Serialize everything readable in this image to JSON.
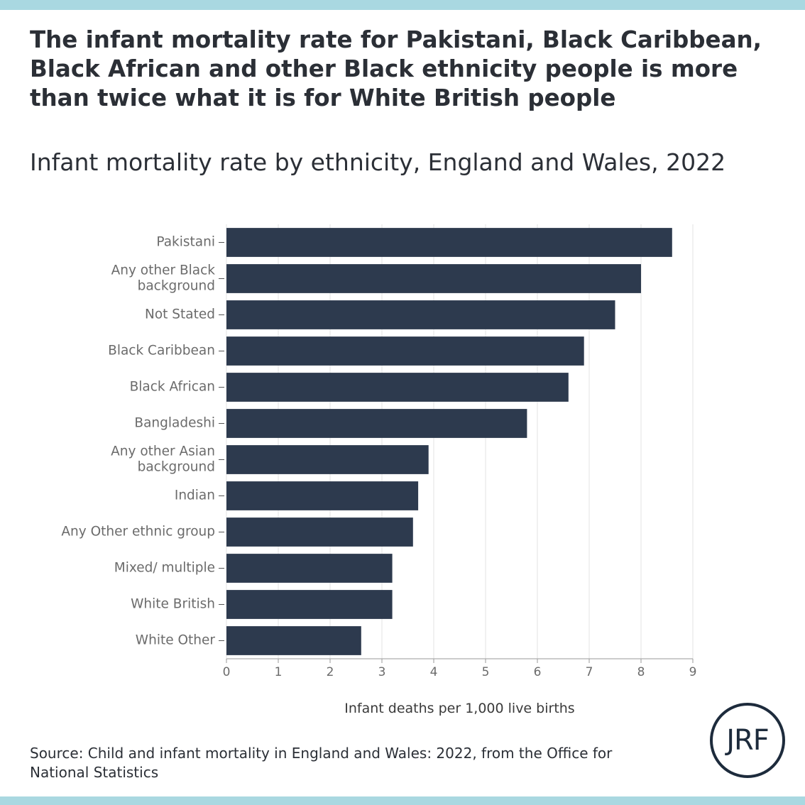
{
  "header": {
    "title": "The infant mortality rate for Pakistani, Black Caribbean, Black African and other Black ethnicity people is more than twice what it is for White British people",
    "subtitle": "Infant mortality rate by ethnicity, England and Wales, 2022"
  },
  "footer": {
    "source": "Source: Child and infant mortality in England and Wales: 2022, from the Office for National Statistics",
    "logo_text": "JRF"
  },
  "colors": {
    "bar": "#2d3a4e",
    "grid": "#e3e3e3",
    "axis_text": "#6b6b6b",
    "band": "#a9d8e1"
  },
  "chart_data": {
    "type": "bar",
    "orientation": "horizontal",
    "categories": [
      "Pakistani",
      "Any other Black background",
      "Not Stated",
      "Black Caribbean",
      "Black African",
      "Bangladeshi",
      "Any other Asian background",
      "Indian",
      "Any Other ethnic group",
      "Mixed/ multiple",
      "White British",
      "White Other"
    ],
    "category_lines": [
      [
        "Pakistani"
      ],
      [
        "Any other Black",
        "background"
      ],
      [
        "Not Stated"
      ],
      [
        "Black Caribbean"
      ],
      [
        "Black African"
      ],
      [
        "Bangladeshi"
      ],
      [
        "Any other Asian",
        "background"
      ],
      [
        "Indian"
      ],
      [
        "Any Other ethnic group"
      ],
      [
        "Mixed/ multiple"
      ],
      [
        "White British"
      ],
      [
        "White Other"
      ]
    ],
    "values": [
      8.6,
      8.0,
      7.5,
      6.9,
      6.6,
      5.8,
      3.9,
      3.7,
      3.6,
      3.2,
      3.2,
      2.6
    ],
    "xlim": [
      0,
      9
    ],
    "xticks": [
      0,
      1,
      2,
      3,
      4,
      5,
      6,
      7,
      8,
      9
    ],
    "xlabel": "Infant deaths per 1,000 live births",
    "ylabel": "",
    "grid": true,
    "legend": "none"
  }
}
